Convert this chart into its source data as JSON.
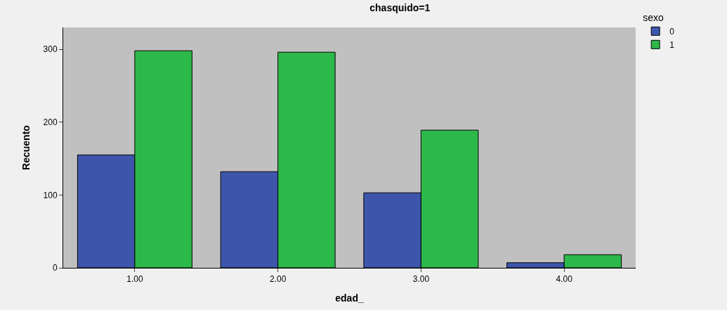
{
  "chart_data": {
    "type": "bar",
    "title": "chasquido=1",
    "xlabel": "edad_",
    "ylabel": "Recuento",
    "legend_title": "sexo",
    "categories": [
      "1.00",
      "2.00",
      "3.00",
      "4.00"
    ],
    "series": [
      {
        "name": "0",
        "color": "#3d56ab",
        "values": [
          155,
          132,
          103,
          7
        ]
      },
      {
        "name": "1",
        "color": "#2db84a",
        "values": [
          298,
          296,
          189,
          18
        ]
      }
    ],
    "ylim": [
      0,
      330
    ],
    "yticks": [
      0,
      100,
      200,
      300
    ],
    "grid": false,
    "legend": "top right"
  }
}
